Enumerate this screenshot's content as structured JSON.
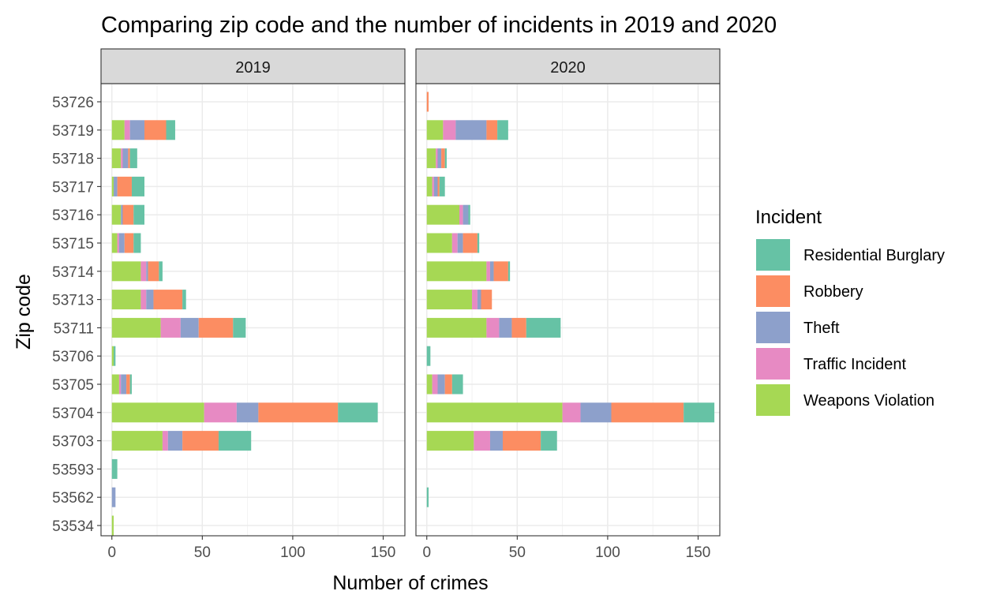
{
  "chart_data": {
    "type": "bar",
    "orientation": "horizontal",
    "stacked": true,
    "title": "Comparing zip code and the number of incidents in 2019 and 2020",
    "xlabel": "Number of crimes",
    "ylabel": "Zip code",
    "xlim": [
      -6,
      162
    ],
    "x_ticks": [
      0,
      50,
      100,
      150
    ],
    "grid": true,
    "legend_position": "right",
    "legend_title": "Incident",
    "categories": [
      "53726",
      "53719",
      "53718",
      "53717",
      "53716",
      "53715",
      "53714",
      "53713",
      "53711",
      "53706",
      "53705",
      "53704",
      "53703",
      "53593",
      "53562",
      "53534"
    ],
    "stack_order": [
      "Weapons Violation",
      "Traffic Incident",
      "Theft",
      "Robbery",
      "Residential Burglary"
    ],
    "legend_items": [
      {
        "name": "Residential Burglary",
        "color": "#66c2a5"
      },
      {
        "name": "Robbery",
        "color": "#fc8d62"
      },
      {
        "name": "Theft",
        "color": "#8da0cb"
      },
      {
        "name": "Traffic Incident",
        "color": "#e78ac3"
      },
      {
        "name": "Weapons Violation",
        "color": "#a6d854"
      }
    ],
    "panels": [
      {
        "label": "2019",
        "series": [
          {
            "name": "Weapons Violation",
            "values": [
              0,
              7,
              5,
              1,
              5,
              3,
              16,
              16,
              27,
              1,
              4,
              51,
              28,
              0,
              0,
              1
            ]
          },
          {
            "name": "Traffic Incident",
            "values": [
              0,
              3,
              1,
              0,
              0,
              1,
              3,
              3,
              11,
              0,
              1,
              18,
              3,
              0,
              0,
              0
            ]
          },
          {
            "name": "Theft",
            "values": [
              0,
              8,
              3,
              2,
              1,
              3,
              1,
              4,
              10,
              0,
              3,
              12,
              8,
              0,
              2,
              0
            ]
          },
          {
            "name": "Robbery",
            "values": [
              0,
              12,
              1,
              8,
              6,
              5,
              6,
              16,
              19,
              0,
              2,
              44,
              20,
              0,
              0,
              0
            ]
          },
          {
            "name": "Residential Burglary",
            "values": [
              0,
              5,
              4,
              7,
              6,
              4,
              2,
              2,
              7,
              1,
              1,
              22,
              18,
              3,
              0,
              0
            ]
          }
        ]
      },
      {
        "label": "2020",
        "series": [
          {
            "name": "Weapons Violation",
            "values": [
              0,
              9,
              5,
              3,
              18,
              14,
              33,
              25,
              33,
              0,
              3,
              75,
              26,
              0,
              0,
              0
            ]
          },
          {
            "name": "Traffic Incident",
            "values": [
              0,
              7,
              1,
              1,
              2,
              3,
              2,
              3,
              7,
              0,
              3,
              10,
              9,
              0,
              0,
              0
            ]
          },
          {
            "name": "Theft",
            "values": [
              0,
              17,
              2,
              2,
              3,
              3,
              2,
              2,
              7,
              0,
              4,
              17,
              7,
              0,
              0,
              0
            ]
          },
          {
            "name": "Robbery",
            "values": [
              1,
              6,
              2,
              1,
              0,
              8,
              8,
              6,
              8,
              0,
              4,
              40,
              21,
              0,
              0,
              0
            ]
          },
          {
            "name": "Residential Burglary",
            "values": [
              0,
              6,
              1,
              3,
              1,
              1,
              1,
              0,
              19,
              2,
              6,
              17,
              9,
              0,
              1,
              0
            ]
          }
        ]
      }
    ]
  }
}
